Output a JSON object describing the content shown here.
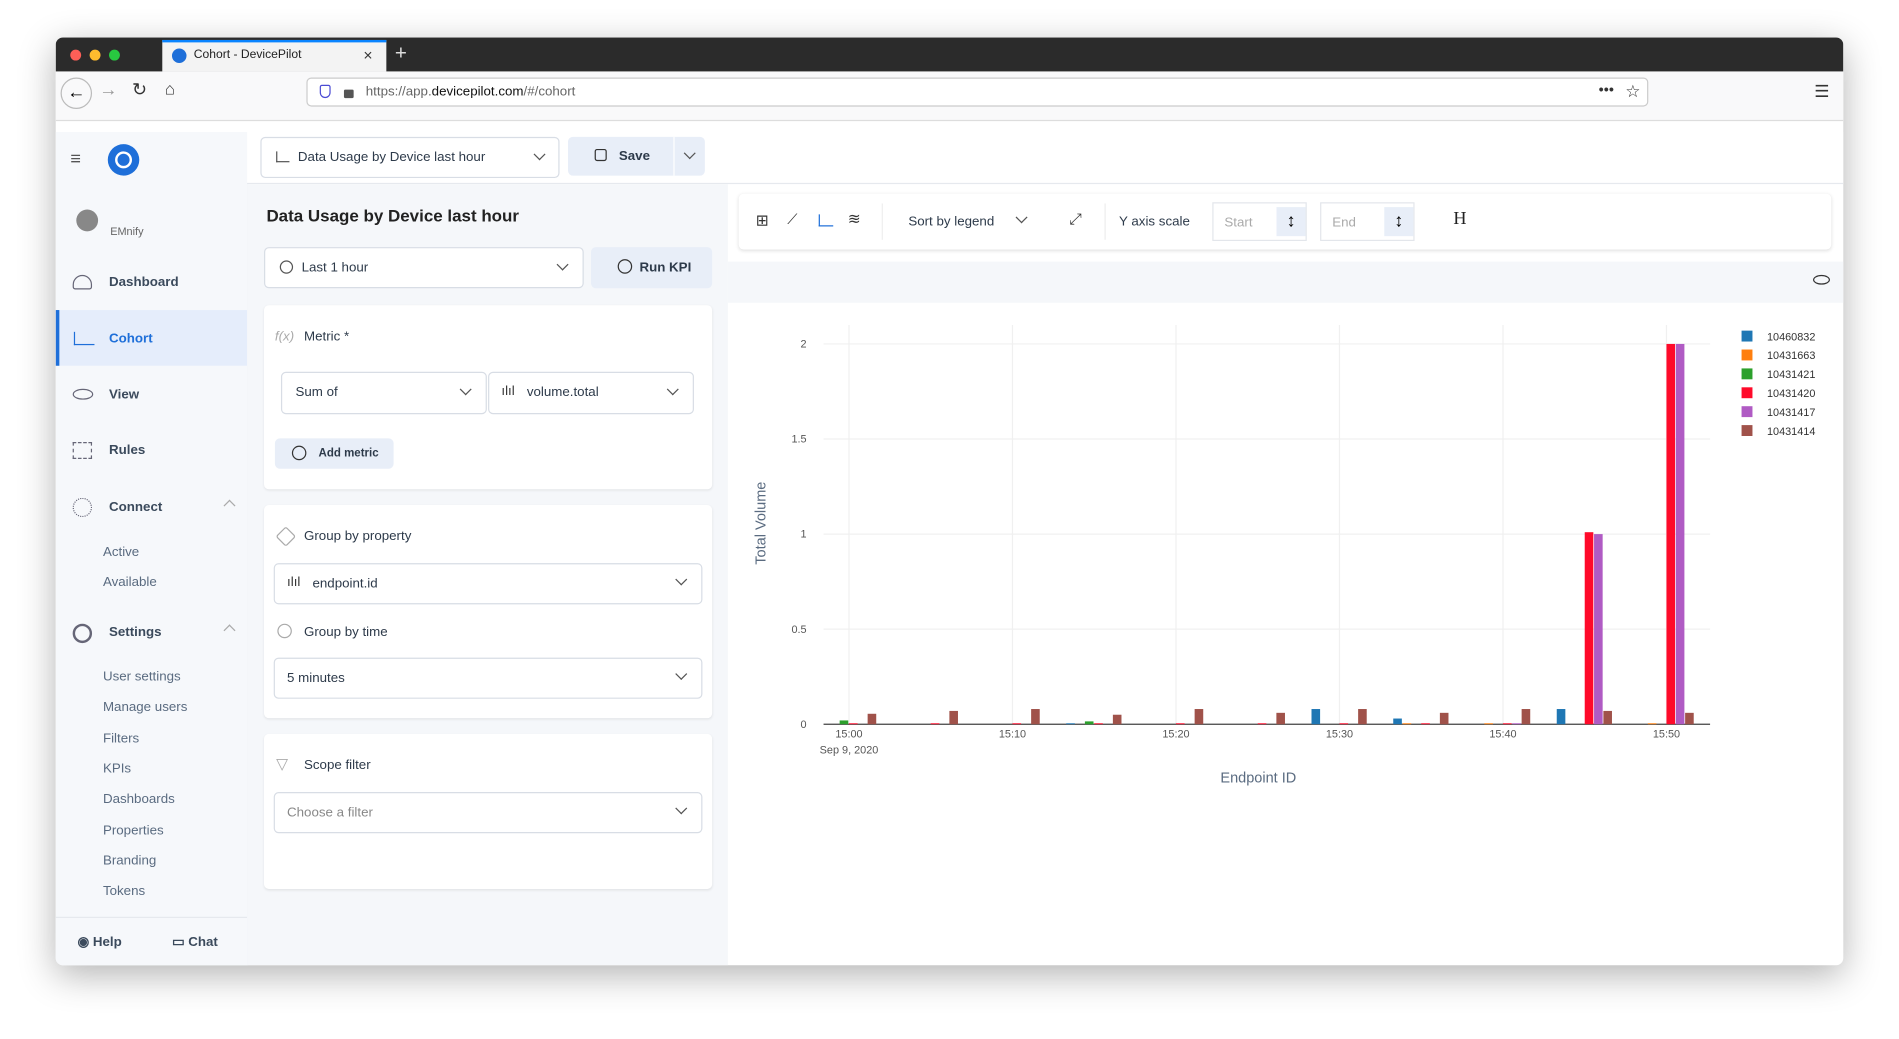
{
  "browser": {
    "tab_title": "Cohort - DevicePilot",
    "url_prefix": "https://app.",
    "url_domain": "devicepilot.com",
    "url_path": "/#/cohort"
  },
  "sidebar": {
    "user": "EMnify",
    "nav": [
      "Dashboard",
      "Cohort",
      "View",
      "Rules",
      "Connect"
    ],
    "connect_items": [
      "Active",
      "Available"
    ],
    "settings": "Settings",
    "settings_items": [
      "User settings",
      "Manage users",
      "Filters",
      "KPIs",
      "Dashboards",
      "Properties",
      "Branding",
      "Tokens"
    ],
    "help": "Help",
    "chat": "Chat"
  },
  "toolbar": {
    "kpi_select": "Data Usage by Device last hour",
    "save": "Save"
  },
  "panel": {
    "title": "Data Usage by Device last hour",
    "time_range": "Last 1 hour",
    "run": "Run KPI",
    "metric_fx": "f(x)",
    "metric_label": "Metric *",
    "aggregation": "Sum of",
    "metric_field": "volume.total",
    "add_metric": "Add metric",
    "group_by_property_label": "Group by property",
    "group_property": "endpoint.id",
    "group_by_time_label": "Group by time",
    "group_time": "5 minutes",
    "scope_filter_label": "Scope filter",
    "scope_placeholder": "Choose a filter"
  },
  "chart_toolbar": {
    "sort": "Sort by legend",
    "y_axis_scale": "Y axis scale",
    "start_placeholder": "Start",
    "end_placeholder": "End",
    "h_button": "H"
  },
  "chart_data": {
    "type": "bar",
    "x_title": "Endpoint ID",
    "y_title": "Total Volume",
    "x_date_label": "Sep 9, 2020",
    "x": [
      "15:00",
      "15:05",
      "15:10",
      "15:15",
      "15:20",
      "15:25",
      "15:30",
      "15:35",
      "15:40",
      "15:45",
      "15:50"
    ],
    "xticks": [
      "15:00",
      "15:10",
      "15:20",
      "15:30",
      "15:40",
      "15:50"
    ],
    "ylim": [
      0,
      2.1
    ],
    "yticks": [
      0,
      0.5,
      1,
      1.5,
      2
    ],
    "grid": true,
    "legend": "top-right",
    "series": [
      {
        "name": "10460832",
        "color": "#1f77b4",
        "values": [
          0,
          0,
          0,
          0.005,
          0,
          0,
          0.08,
          0.03,
          0,
          0.08,
          0
        ]
      },
      {
        "name": "10431663",
        "color": "#ff7f0e",
        "values": [
          0,
          0,
          0,
          0,
          0,
          0,
          0,
          0.005,
          0.005,
          0,
          0.005
        ]
      },
      {
        "name": "10431421",
        "color": "#2ca02c",
        "values": [
          0.02,
          0,
          0,
          0.015,
          0,
          0,
          0,
          0,
          0,
          0,
          0
        ]
      },
      {
        "name": "10431420",
        "color": "#ff0a2a",
        "values": [
          0.005,
          0.005,
          0.005,
          0.005,
          0.005,
          0.005,
          0.005,
          0.005,
          0.005,
          1.01,
          2.0
        ]
      },
      {
        "name": "10431417",
        "color": "#b05bc4",
        "values": [
          0,
          0,
          0,
          0,
          0,
          0,
          0,
          0,
          0.005,
          1.0,
          2.0
        ]
      },
      {
        "name": "10431414",
        "color": "#a0524a",
        "values": [
          0.055,
          0.07,
          0.08,
          0.05,
          0.08,
          0.06,
          0.08,
          0.06,
          0.08,
          0.07,
          0.06
        ]
      }
    ]
  }
}
